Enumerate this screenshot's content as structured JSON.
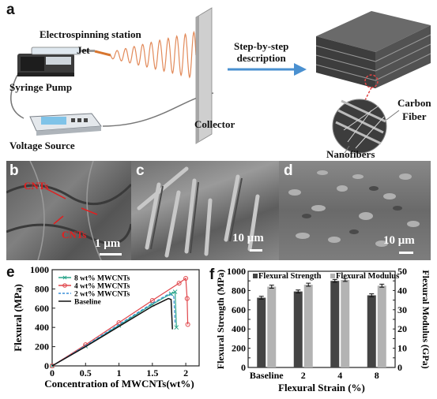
{
  "panel_a": {
    "letter": "a",
    "station_label": "Electrospinning station",
    "jet_label": "Jet",
    "syringe_label": "Syringe Pump",
    "voltage_label": "Voltage Source",
    "collector_label": "Collector",
    "step_label_line1": "Step-by-step",
    "step_label_line2": "description",
    "carbon_label_line1": "Carbon",
    "carbon_label_line2": "Fiber",
    "nanofibers_label": "Nanofibers"
  },
  "panel_b": {
    "letter": "b",
    "cnts_top": "CNTs",
    "cnts_bottom": "CNTs",
    "scale": "1 μm"
  },
  "panel_c": {
    "letter": "c",
    "scale": "10 μm"
  },
  "panel_d": {
    "letter": "d",
    "scale": "10 μm"
  },
  "panel_e": {
    "letter": "e"
  },
  "panel_f": {
    "letter": "f"
  },
  "chart_data": [
    {
      "type": "line",
      "xlabel": "Concentration of MWCNTs(wt%)",
      "ylabel": "Flexural (MPa)",
      "xlim": [
        0,
        2.2
      ],
      "ylim": [
        0,
        1000
      ],
      "xticks": [
        "0",
        "0.5",
        "1",
        "1.5",
        "2"
      ],
      "yticks": [
        "0",
        "200",
        "400",
        "600",
        "800",
        "1000"
      ],
      "legend_position": "top-left",
      "series": [
        {
          "name": "8 wt% MWCNTs",
          "color": "#2aa58a",
          "marker": "x",
          "x": [
            0,
            0.5,
            1.0,
            1.5,
            1.78,
            1.84,
            1.86
          ],
          "y": [
            0,
            205,
            420,
            640,
            750,
            770,
            400
          ]
        },
        {
          "name": "4 wt% MWCNTs",
          "color": "#e0454a",
          "marker": "o",
          "x": [
            0,
            0.5,
            1.0,
            1.5,
            1.9,
            2.0,
            2.02,
            2.03
          ],
          "y": [
            0,
            220,
            450,
            680,
            860,
            910,
            700,
            430
          ]
        },
        {
          "name": "2 wt% MWCNTs",
          "color": "#3a8fd8",
          "marker": "dash",
          "x": [
            0,
            0.5,
            1.0,
            1.5,
            1.75,
            1.82,
            1.84
          ],
          "y": [
            0,
            210,
            430,
            650,
            750,
            720,
            430
          ]
        },
        {
          "name": "Baseline",
          "color": "#111111",
          "marker": "none",
          "x": [
            0,
            0.5,
            1.0,
            1.5,
            1.74,
            1.78,
            1.8
          ],
          "y": [
            0,
            200,
            410,
            620,
            700,
            690,
            380
          ]
        }
      ]
    },
    {
      "type": "bar",
      "xlabel": "Flexural Strain (%)",
      "ylabel": "Flexural Strength (MPa)",
      "ylabel_right": "Flexural Modulus (GPa)",
      "categories": [
        "Baseline",
        "2",
        "4",
        "8"
      ],
      "ylim": [
        0,
        1000
      ],
      "ylim_right": [
        0,
        50
      ],
      "yticks": [
        "0",
        "100",
        "200",
        "300",
        "400",
        "500",
        "600",
        "700",
        "800",
        "900",
        "1000"
      ],
      "yticks_right": [
        "0",
        "5",
        "10",
        "15",
        "20",
        "25",
        "30",
        "35",
        "40",
        "45",
        "50"
      ],
      "legend_position": "top",
      "series": [
        {
          "name": "Flexural Strength",
          "color": "#444444",
          "axis": "left",
          "values": [
            725,
            790,
            900,
            750
          ],
          "errors": [
            15,
            15,
            15,
            15
          ]
        },
        {
          "name": "Flexural Modulus",
          "color": "#b3b3b3",
          "axis": "right",
          "values": [
            42,
            43,
            45.5,
            42.5
          ],
          "errors": [
            0.8,
            0.8,
            0.8,
            0.8
          ]
        }
      ]
    }
  ]
}
